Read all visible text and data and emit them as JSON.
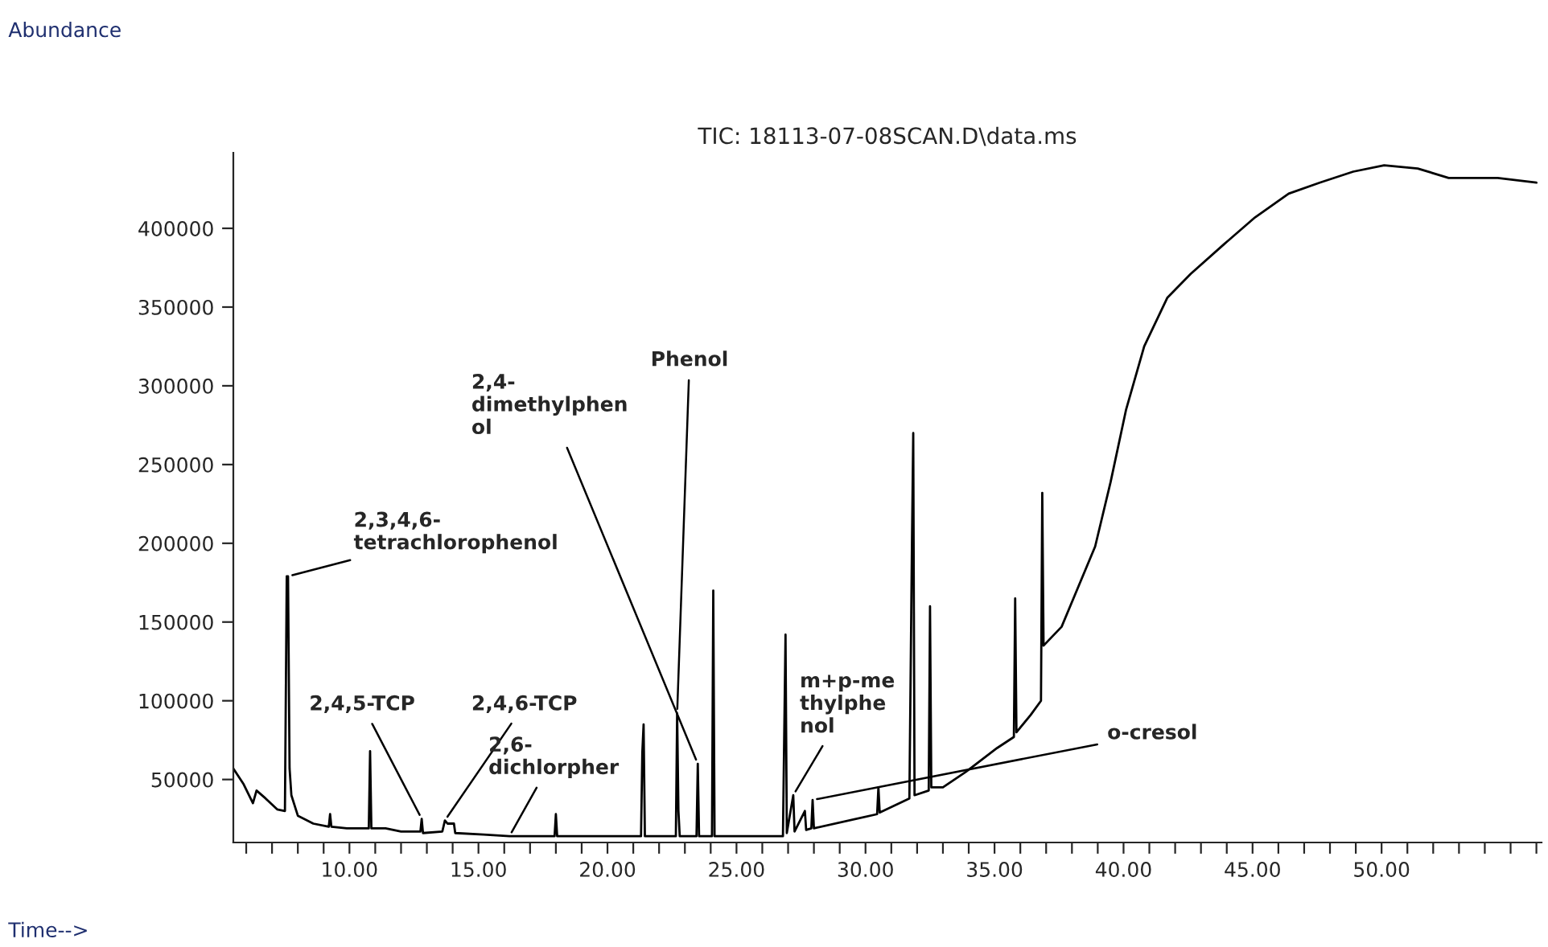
{
  "chart_data": {
    "type": "line",
    "title": "TIC: 18113-07-08SCAN.D\\data.ms",
    "xlim": [
      5.5,
      56.2
    ],
    "ylim": [
      10000,
      448000
    ],
    "xticks": [
      {
        "value": 6,
        "label": null
      },
      {
        "value": 7,
        "label": null
      },
      {
        "value": 8,
        "label": null
      },
      {
        "value": 9,
        "label": null
      },
      {
        "value": 10,
        "label": "10.00"
      },
      {
        "value": 11,
        "label": null
      },
      {
        "value": 12,
        "label": null
      },
      {
        "value": 13,
        "label": null
      },
      {
        "value": 14,
        "label": null
      },
      {
        "value": 15,
        "label": "15.00"
      },
      {
        "value": 16,
        "label": null
      },
      {
        "value": 17,
        "label": null
      },
      {
        "value": 18,
        "label": null
      },
      {
        "value": 19,
        "label": null
      },
      {
        "value": 20,
        "label": "20.00"
      },
      {
        "value": 21,
        "label": null
      },
      {
        "value": 22,
        "label": null
      },
      {
        "value": 23,
        "label": null
      },
      {
        "value": 24,
        "label": null
      },
      {
        "value": 25,
        "label": "25.00"
      },
      {
        "value": 26,
        "label": null
      },
      {
        "value": 27,
        "label": null
      },
      {
        "value": 28,
        "label": null
      },
      {
        "value": 29,
        "label": null
      },
      {
        "value": 30,
        "label": "30.00"
      },
      {
        "value": 31,
        "label": null
      },
      {
        "value": 32,
        "label": null
      },
      {
        "value": 33,
        "label": null
      },
      {
        "value": 34,
        "label": null
      },
      {
        "value": 35,
        "label": "35.00"
      },
      {
        "value": 36,
        "label": null
      },
      {
        "value": 37,
        "label": null
      },
      {
        "value": 38,
        "label": null
      },
      {
        "value": 39,
        "label": null
      },
      {
        "value": 40,
        "label": "40.00"
      },
      {
        "value": 41,
        "label": null
      },
      {
        "value": 42,
        "label": null
      },
      {
        "value": 43,
        "label": null
      },
      {
        "value": 44,
        "label": null
      },
      {
        "value": 45,
        "label": "45.00"
      },
      {
        "value": 46,
        "label": null
      },
      {
        "value": 47,
        "label": null
      },
      {
        "value": 48,
        "label": null
      },
      {
        "value": 49,
        "label": null
      },
      {
        "value": 50,
        "label": "50.00"
      },
      {
        "value": 51,
        "label": null
      },
      {
        "value": 52,
        "label": null
      },
      {
        "value": 53,
        "label": null
      },
      {
        "value": 54,
        "label": null
      },
      {
        "value": 55,
        "label": null
      },
      {
        "value": 56,
        "label": null
      }
    ],
    "yticks": [
      50000,
      100000,
      150000,
      200000,
      250000,
      300000,
      350000,
      400000
    ],
    "grid": false,
    "series": [
      {
        "color": "#000000",
        "x": [
          5.5,
          5.9,
          6.26,
          6.4,
          6.75,
          7.2,
          7.5,
          7.57,
          7.62,
          7.68,
          7.75,
          8.0,
          8.6,
          9.2,
          9.25,
          9.3,
          9.9,
          10.75,
          10.8,
          10.85,
          11.4,
          12.0,
          12.75,
          12.8,
          12.85,
          13.6,
          13.7,
          13.8,
          14.05,
          14.1,
          15.2,
          16.2,
          17.95,
          18.0,
          18.05,
          21.3,
          21.35,
          21.4,
          21.45,
          22.65,
          22.7,
          22.75,
          22.8,
          23.45,
          23.5,
          23.55,
          24.05,
          24.1,
          24.15,
          26.8,
          26.9,
          26.95,
          27.2,
          27.25,
          27.65,
          27.7,
          27.9,
          27.95,
          28.0,
          30.45,
          30.5,
          30.55,
          31.7,
          31.8,
          31.85,
          31.9,
          32.45,
          32.5,
          32.55,
          33.0,
          33.9,
          35.1,
          35.75,
          35.8,
          35.85,
          36.4,
          36.8,
          36.85,
          36.9,
          37.6,
          38.9,
          39.5,
          40.1,
          40.8,
          41.7,
          42.6,
          43.9,
          45.1,
          46.4,
          47.6,
          48.9,
          50.1,
          51.4,
          52.6,
          54.5,
          56.0
        ],
        "values": [
          57000,
          47000,
          35000,
          43000,
          38000,
          31000,
          30000,
          179000,
          179000,
          57000,
          40000,
          27000,
          22000,
          20000,
          28000,
          20000,
          19000,
          19000,
          68000,
          19000,
          19000,
          17000,
          17000,
          25000,
          16000,
          17000,
          24000,
          22000,
          22000,
          16000,
          15000,
          14000,
          14000,
          28000,
          14000,
          14000,
          67000,
          85000,
          14000,
          14000,
          92000,
          30000,
          14000,
          14000,
          60000,
          14000,
          14000,
          170000,
          14000,
          14000,
          142000,
          16000,
          40000,
          17000,
          30000,
          18000,
          19000,
          37000,
          19000,
          28000,
          45000,
          29000,
          38000,
          200000,
          270000,
          40000,
          43000,
          160000,
          45000,
          45000,
          55000,
          70000,
          77000,
          165000,
          80000,
          91000,
          100000,
          232000,
          135000,
          147000,
          198000,
          239000,
          285000,
          325000,
          356000,
          371000,
          390000,
          407000,
          422000,
          429000,
          436000,
          440000,
          438000,
          432000,
          432000,
          429000
        ]
      }
    ],
    "annotations": [
      {
        "text": "2,3,4,6-\ntetrachlorophenol",
        "x": 7.62,
        "y": 179000
      },
      {
        "text": "2,4,5-TCP",
        "x": 12.8,
        "y": 25000
      },
      {
        "text": "2,4,6-TCP",
        "x": 13.7,
        "y": 24000
      },
      {
        "text": "2,6-\ndichlorpher",
        "x": 16.2,
        "y": 14000
      },
      {
        "text": "2,4-\ndimethylphen\nol",
        "x": 23.5,
        "y": 60000
      },
      {
        "text": "Phenol",
        "x": 22.7,
        "y": 92000
      },
      {
        "text": "m+p-me\nthylphe\nnol",
        "x": 27.2,
        "y": 40000
      },
      {
        "text": "o-cresol",
        "x": 27.95,
        "y": 37000
      },
      "Abundance",
      "Time-->"
    ]
  }
}
